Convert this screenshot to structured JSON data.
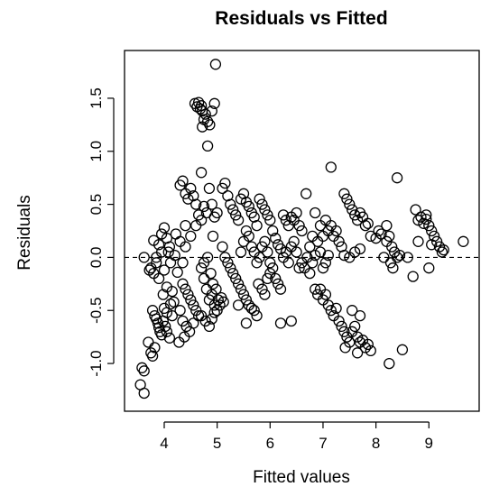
{
  "chart_data": {
    "type": "scatter",
    "title": "Residuals vs Fitted",
    "xlabel": "Fitted values",
    "ylabel": "Residuals",
    "xlim": [
      3.25,
      9.95
    ],
    "ylim": [
      -1.45,
      1.95
    ],
    "x_ticks": [
      4,
      5,
      6,
      7,
      8,
      9
    ],
    "y_ticks": [
      -1.0,
      -0.5,
      0.0,
      0.5,
      1.0,
      1.5
    ],
    "y_tick_labels": [
      "-1.0",
      "-0.5",
      "0.0",
      "0.5",
      "1.0",
      "1.5"
    ],
    "reference_line": {
      "y": 0,
      "style": "dashed"
    },
    "grid": false,
    "marker": "open-circle",
    "points": [
      [
        3.55,
        -1.2
      ],
      [
        3.62,
        -1.28
      ],
      [
        3.58,
        -1.04
      ],
      [
        3.62,
        -1.07
      ],
      [
        3.7,
        -0.8
      ],
      [
        3.75,
        -0.9
      ],
      [
        3.78,
        -0.93
      ],
      [
        3.82,
        -0.85
      ],
      [
        3.78,
        -0.5
      ],
      [
        3.82,
        -0.55
      ],
      [
        3.85,
        -0.58
      ],
      [
        3.88,
        -0.62
      ],
      [
        3.9,
        -0.66
      ],
      [
        3.92,
        -0.7
      ],
      [
        3.95,
        -0.73
      ],
      [
        3.98,
        -0.6
      ],
      [
        4.02,
        -0.65
      ],
      [
        4.05,
        -0.7
      ],
      [
        4.0,
        -0.48
      ],
      [
        4.05,
        -0.52
      ],
      [
        4.1,
        -0.76
      ],
      [
        4.12,
        -0.44
      ],
      [
        4.15,
        -0.55
      ],
      [
        3.75,
        -0.1
      ],
      [
        3.8,
        -0.15
      ],
      [
        3.85,
        -0.05
      ],
      [
        3.9,
        -0.2
      ],
      [
        3.95,
        0.05
      ],
      [
        3.8,
        0.16
      ],
      [
        3.85,
        0.0
      ],
      [
        3.9,
        0.12
      ],
      [
        3.95,
        0.22
      ],
      [
        4.0,
        0.28
      ],
      [
        4.05,
        0.18
      ],
      [
        4.1,
        0.1
      ],
      [
        4.12,
        -0.05
      ],
      [
        4.0,
        -0.12
      ],
      [
        4.05,
        -0.28
      ],
      [
        4.15,
        -0.32
      ],
      [
        4.2,
        0.02
      ],
      [
        4.25,
        -0.14
      ],
      [
        4.3,
        0.15
      ],
      [
        4.35,
        -0.05
      ],
      [
        4.4,
        0.3
      ],
      [
        3.62,
        0.0
      ],
      [
        3.72,
        -0.12
      ],
      [
        4.08,
        0.05
      ],
      [
        4.22,
        0.22
      ],
      [
        3.98,
        -0.35
      ],
      [
        4.18,
        -0.42
      ],
      [
        4.3,
        0.68
      ],
      [
        4.35,
        0.72
      ],
      [
        4.4,
        0.6
      ],
      [
        4.45,
        0.55
      ],
      [
        4.5,
        0.65
      ],
      [
        4.55,
        0.58
      ],
      [
        4.6,
        0.5
      ],
      [
        4.4,
        0.1
      ],
      [
        4.5,
        0.2
      ],
      [
        4.6,
        0.3
      ],
      [
        4.65,
        0.4
      ],
      [
        4.7,
        0.35
      ],
      [
        4.75,
        0.48
      ],
      [
        4.8,
        0.42
      ],
      [
        4.35,
        -0.25
      ],
      [
        4.4,
        -0.3
      ],
      [
        4.45,
        -0.35
      ],
      [
        4.5,
        -0.4
      ],
      [
        4.55,
        -0.45
      ],
      [
        4.6,
        -0.5
      ],
      [
        4.65,
        -0.55
      ],
      [
        4.3,
        -0.5
      ],
      [
        4.35,
        -0.6
      ],
      [
        4.42,
        -0.65
      ],
      [
        4.48,
        -0.7
      ],
      [
        4.55,
        -0.62
      ],
      [
        4.38,
        -0.75
      ],
      [
        4.28,
        -0.8
      ],
      [
        4.58,
        1.45
      ],
      [
        4.62,
        1.42
      ],
      [
        4.65,
        1.46
      ],
      [
        4.68,
        1.4
      ],
      [
        4.7,
        1.43
      ],
      [
        4.72,
        1.38
      ],
      [
        4.75,
        1.3
      ],
      [
        4.78,
        1.35
      ],
      [
        4.82,
        1.28
      ],
      [
        4.86,
        1.25
      ],
      [
        4.9,
        1.38
      ],
      [
        4.95,
        1.45
      ],
      [
        4.72,
        1.23
      ],
      [
        4.82,
        1.05
      ],
      [
        4.97,
        1.82
      ],
      [
        4.7,
        0.8
      ],
      [
        4.85,
        0.65
      ],
      [
        4.9,
        0.5
      ],
      [
        4.92,
        0.2
      ],
      [
        4.95,
        0.38
      ],
      [
        5.0,
        0.42
      ],
      [
        4.7,
        -0.1
      ],
      [
        4.75,
        -0.2
      ],
      [
        4.8,
        -0.3
      ],
      [
        4.85,
        -0.4
      ],
      [
        4.9,
        -0.35
      ],
      [
        4.95,
        -0.45
      ],
      [
        5.0,
        -0.5
      ],
      [
        4.75,
        -0.05
      ],
      [
        4.82,
        0.0
      ],
      [
        4.88,
        -0.15
      ],
      [
        4.92,
        -0.25
      ],
      [
        4.98,
        -0.3
      ],
      [
        5.02,
        -0.4
      ],
      [
        5.05,
        -0.45
      ],
      [
        4.7,
        -0.55
      ],
      [
        4.78,
        -0.6
      ],
      [
        4.85,
        -0.65
      ],
      [
        4.9,
        -0.58
      ],
      [
        4.95,
        -0.52
      ],
      [
        5.08,
        -0.38
      ],
      [
        5.12,
        -0.42
      ],
      [
        5.1,
        0.65
      ],
      [
        5.15,
        0.7
      ],
      [
        5.2,
        0.58
      ],
      [
        5.25,
        0.5
      ],
      [
        5.3,
        0.45
      ],
      [
        5.35,
        0.4
      ],
      [
        5.4,
        0.35
      ],
      [
        5.1,
        0.1
      ],
      [
        5.15,
        0.0
      ],
      [
        5.2,
        -0.05
      ],
      [
        5.25,
        -0.1
      ],
      [
        5.3,
        -0.15
      ],
      [
        5.35,
        -0.2
      ],
      [
        5.4,
        -0.25
      ],
      [
        5.45,
        0.55
      ],
      [
        5.5,
        0.6
      ],
      [
        5.55,
        0.52
      ],
      [
        5.6,
        0.48
      ],
      [
        5.65,
        0.42
      ],
      [
        5.7,
        0.38
      ],
      [
        5.75,
        0.3
      ],
      [
        5.45,
        -0.3
      ],
      [
        5.5,
        -0.35
      ],
      [
        5.55,
        -0.4
      ],
      [
        5.6,
        -0.45
      ],
      [
        5.65,
        -0.48
      ],
      [
        5.7,
        -0.5
      ],
      [
        5.75,
        -0.55
      ],
      [
        5.4,
        -0.45
      ],
      [
        5.55,
        -0.62
      ],
      [
        5.45,
        0.05
      ],
      [
        5.5,
        0.15
      ],
      [
        5.55,
        0.25
      ],
      [
        5.6,
        0.2
      ],
      [
        5.65,
        0.1
      ],
      [
        5.7,
        0.05
      ],
      [
        5.75,
        -0.05
      ],
      [
        5.8,
        0.0
      ],
      [
        5.85,
        0.1
      ],
      [
        5.9,
        0.15
      ],
      [
        5.95,
        0.05
      ],
      [
        6.0,
        -0.05
      ],
      [
        5.8,
        0.55
      ],
      [
        5.85,
        0.5
      ],
      [
        5.9,
        0.45
      ],
      [
        5.95,
        0.4
      ],
      [
        6.0,
        0.35
      ],
      [
        5.78,
        -0.25
      ],
      [
        5.85,
        -0.3
      ],
      [
        5.9,
        -0.35
      ],
      [
        5.95,
        -0.2
      ],
      [
        6.0,
        -0.15
      ],
      [
        6.05,
        0.25
      ],
      [
        6.1,
        0.18
      ],
      [
        6.15,
        0.12
      ],
      [
        6.2,
        0.08
      ],
      [
        6.05,
        -0.1
      ],
      [
        6.1,
        -0.2
      ],
      [
        6.15,
        -0.25
      ],
      [
        6.2,
        -0.3
      ],
      [
        6.25,
        0.4
      ],
      [
        6.3,
        0.35
      ],
      [
        6.35,
        0.3
      ],
      [
        6.25,
        0.0
      ],
      [
        6.3,
        0.05
      ],
      [
        6.35,
        -0.05
      ],
      [
        6.4,
        0.1
      ],
      [
        6.45,
        0.15
      ],
      [
        6.5,
        0.05
      ],
      [
        6.55,
        -0.1
      ],
      [
        6.4,
        0.38
      ],
      [
        6.45,
        0.35
      ],
      [
        6.5,
        0.42
      ],
      [
        6.55,
        0.3
      ],
      [
        6.6,
        0.25
      ],
      [
        6.2,
        -0.62
      ],
      [
        6.4,
        -0.6
      ],
      [
        6.6,
        -0.05
      ],
      [
        6.65,
        -0.1
      ],
      [
        6.7,
        0.0
      ],
      [
        6.75,
        -0.15
      ],
      [
        6.68,
        0.6
      ],
      [
        6.8,
        -0.05
      ],
      [
        6.85,
        0.02
      ],
      [
        6.75,
        0.1
      ],
      [
        6.8,
        0.2
      ],
      [
        6.9,
        0.15
      ],
      [
        6.95,
        0.05
      ],
      [
        7.0,
        -0.1
      ],
      [
        7.05,
        -0.05
      ],
      [
        7.1,
        0.02
      ],
      [
        6.85,
        0.42
      ],
      [
        6.95,
        0.3
      ],
      [
        7.0,
        0.2
      ],
      [
        7.05,
        0.35
      ],
      [
        7.1,
        0.25
      ],
      [
        7.15,
        0.3
      ],
      [
        7.2,
        0.2
      ],
      [
        7.25,
        0.25
      ],
      [
        7.3,
        0.15
      ],
      [
        7.35,
        0.1
      ],
      [
        7.15,
        0.85
      ],
      [
        7.4,
        0.6
      ],
      [
        7.45,
        0.55
      ],
      [
        7.5,
        0.5
      ],
      [
        7.55,
        0.45
      ],
      [
        7.6,
        0.4
      ],
      [
        7.65,
        0.35
      ],
      [
        7.7,
        0.42
      ],
      [
        7.75,
        0.38
      ],
      [
        7.8,
        0.3
      ],
      [
        7.85,
        0.32
      ],
      [
        7.4,
        0.02
      ],
      [
        7.5,
        0.0
      ],
      [
        7.6,
        0.05
      ],
      [
        7.7,
        0.08
      ],
      [
        7.9,
        0.2
      ],
      [
        8.0,
        0.18
      ],
      [
        8.1,
        0.22
      ],
      [
        6.85,
        -0.3
      ],
      [
        6.9,
        -0.35
      ],
      [
        6.95,
        -0.3
      ],
      [
        7.0,
        -0.4
      ],
      [
        7.05,
        -0.35
      ],
      [
        7.1,
        -0.45
      ],
      [
        7.15,
        -0.5
      ],
      [
        7.2,
        -0.55
      ],
      [
        7.25,
        -0.48
      ],
      [
        7.3,
        -0.6
      ],
      [
        7.35,
        -0.65
      ],
      [
        7.4,
        -0.7
      ],
      [
        7.45,
        -0.75
      ],
      [
        7.5,
        -0.8
      ],
      [
        7.55,
        -0.7
      ],
      [
        7.6,
        -0.65
      ],
      [
        7.65,
        -0.75
      ],
      [
        7.7,
        -0.8
      ],
      [
        7.75,
        -0.78
      ],
      [
        7.8,
        -0.85
      ],
      [
        7.85,
        -0.82
      ],
      [
        7.9,
        -0.88
      ],
      [
        7.55,
        -0.5
      ],
      [
        7.7,
        -0.55
      ],
      [
        7.42,
        -0.85
      ],
      [
        7.65,
        -0.9
      ],
      [
        8.25,
        -1.0
      ],
      [
        8.5,
        -0.87
      ],
      [
        8.2,
        0.15
      ],
      [
        8.25,
        0.2
      ],
      [
        8.3,
        0.1
      ],
      [
        8.35,
        0.05
      ],
      [
        8.4,
        0.0
      ],
      [
        8.28,
        -0.05
      ],
      [
        8.32,
        -0.1
      ],
      [
        8.45,
        0.02
      ],
      [
        8.6,
        0.0
      ],
      [
        8.7,
        -0.18
      ],
      [
        8.4,
        0.75
      ],
      [
        8.2,
        0.3
      ],
      [
        8.15,
        0.0
      ],
      [
        8.05,
        0.25
      ],
      [
        8.75,
        0.45
      ],
      [
        8.8,
        0.35
      ],
      [
        8.85,
        0.38
      ],
      [
        8.9,
        0.32
      ],
      [
        8.95,
        0.36
      ],
      [
        9.0,
        0.3
      ],
      [
        9.05,
        0.25
      ],
      [
        9.1,
        0.2
      ],
      [
        9.15,
        0.15
      ],
      [
        9.2,
        0.1
      ],
      [
        9.25,
        0.05
      ],
      [
        8.8,
        0.15
      ],
      [
        9.0,
        -0.1
      ],
      [
        9.05,
        0.12
      ],
      [
        9.65,
        0.15
      ],
      [
        9.28,
        0.07
      ],
      [
        8.95,
        0.4
      ]
    ]
  }
}
